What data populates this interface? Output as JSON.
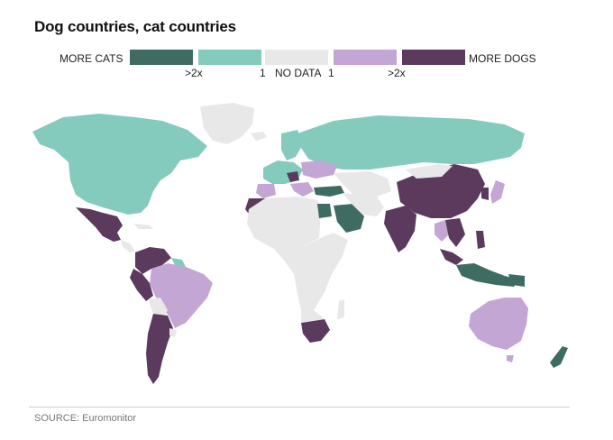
{
  "title": "Dog countries, cat countries",
  "legend": {
    "left_label": "MORE CATS",
    "right_label": "MORE DOGS",
    "tick_cats_2x": ">2x",
    "tick_cats_1": "1",
    "tick_nodata": "NO DATA",
    "tick_dogs_1": "1",
    "tick_dogs_2x": ">2x",
    "categories": [
      {
        "key": "cats_2x",
        "color": "#3e6b62"
      },
      {
        "key": "cats_1",
        "color": "#84cbbd"
      },
      {
        "key": "no_data",
        "color": "#e8e8e8"
      },
      {
        "key": "dogs_1",
        "color": "#c3a6d3"
      },
      {
        "key": "dogs_2x",
        "color": "#5b3a5e"
      }
    ]
  },
  "colors": {
    "cats_2x": "#3e6b62",
    "cats_1": "#84cbbd",
    "no_data": "#e8e8e8",
    "dogs_1": "#c3a6d3",
    "dogs_2x": "#5b3a5e"
  },
  "source": "SOURCE: Euromonitor"
}
